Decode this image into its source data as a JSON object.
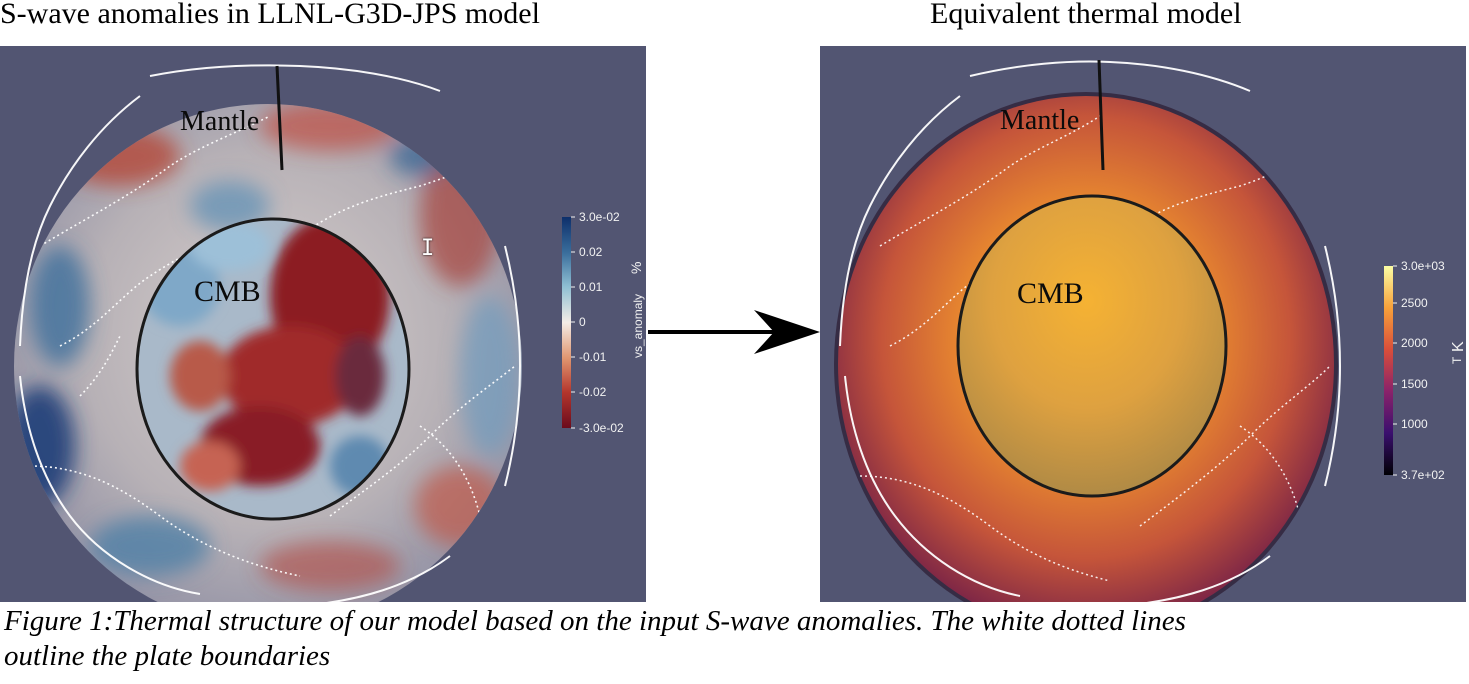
{
  "titles": {
    "left": "S-wave anomalies in LLNL-G3D-JPS model",
    "right": "Equivalent thermal model"
  },
  "left_panel": {
    "mantle_label": "Mantle",
    "core_label": "CMB",
    "colorbar": {
      "title": "vs_anomaly",
      "unit": "%",
      "ticks": [
        "3.0e-02",
        "0.02",
        "0.01",
        "0",
        "-0.01",
        "-0.02",
        "-3.0e-02"
      ],
      "colors": [
        "#0d2f6b",
        "#3a6e9c",
        "#8fbfd3",
        "#f4ece6",
        "#e0956f",
        "#b4362d",
        "#6b0b1c"
      ]
    }
  },
  "right_panel": {
    "mantle_label": "Mantle",
    "core_label": "CMB",
    "colorbar": {
      "title": "T",
      "unit": "K",
      "ticks": [
        "3.0e+03",
        "2500",
        "2000",
        "1500",
        "1000",
        "3.7e+02"
      ],
      "colors": [
        "#fcfea4",
        "#f8a13a",
        "#d94e3a",
        "#8a226a",
        "#3a0f6e",
        "#000004"
      ]
    }
  },
  "caption": {
    "line1": "Figure 1:Thermal structure of our model based on the input S-wave anomalies. The white dotted lines",
    "line2": "outline the plate boundaries"
  },
  "colors": {
    "panel_background": "#525572",
    "plate_boundaries": "#ffffff"
  }
}
